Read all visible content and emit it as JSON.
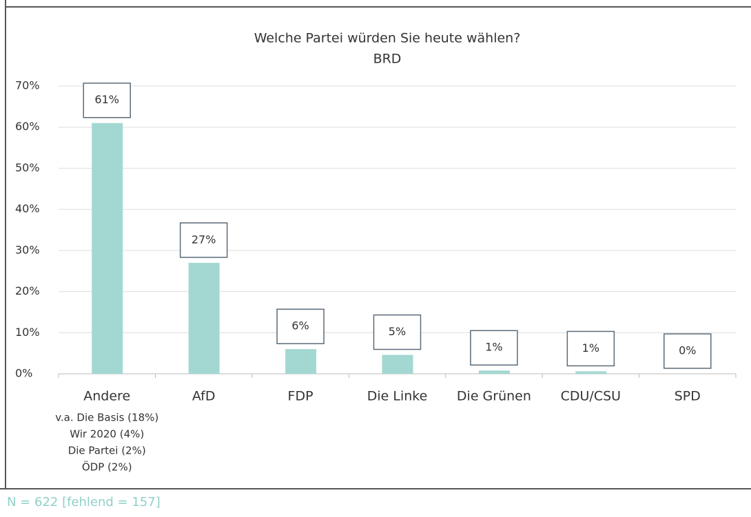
{
  "chart_data": {
    "type": "bar",
    "title": "Welche Partei würden Sie heute wählen?",
    "subtitle": "BRD",
    "categories": [
      "Andere",
      "AfD",
      "FDP",
      "Die Linke",
      "Die Grünen",
      "CDU/CSU",
      "SPD"
    ],
    "values": [
      61,
      27,
      6,
      4.6,
      0.8,
      0.6,
      0
    ],
    "value_labels": [
      "61%",
      "27%",
      "6%",
      "5%",
      "1%",
      "1%",
      "0%"
    ],
    "color": "#a3d8d2",
    "ylim": [
      0,
      70
    ],
    "yticks": [
      {
        "value": 0,
        "label": "0%"
      },
      {
        "value": 10,
        "label": "10%"
      },
      {
        "value": 20,
        "label": "20%"
      },
      {
        "value": 30,
        "label": "30%"
      },
      {
        "value": 40,
        "label": "40%"
      },
      {
        "value": 50,
        "label": "50%"
      },
      {
        "value": 60,
        "label": "60%"
      },
      {
        "value": 70,
        "label": "70%"
      }
    ],
    "grid": true,
    "annotations": [
      "v.a. Die Basis (18%)",
      "Wir 2020 (4%)",
      "Die Partei (2%)",
      "ÖDP (2%)"
    ],
    "footnote": "N = 622 [fehlend = 157]"
  }
}
